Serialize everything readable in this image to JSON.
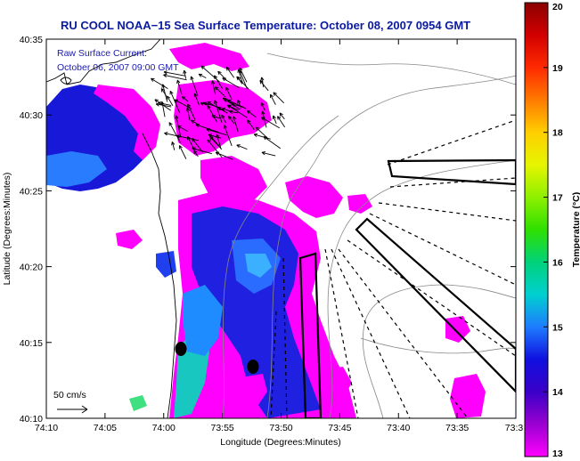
{
  "chart_data": {
    "type": "heatmap",
    "title": "RU COOL  NOAA−15  Sea Surface Temperature:  October 08, 2007 0954 GMT",
    "annotation_lines": [
      "Raw Surface Current:",
      "October 06, 2007 09:00 GMT"
    ],
    "scale_arrow_label": "50 cm/s",
    "xlabel": "Longitude (Degrees:Minutes)",
    "ylabel": "Latitude (Degrees:Minutes)",
    "x_ticks": [
      "74:10",
      "74:05",
      "74:00",
      "73:55",
      "73:50",
      "73:45",
      "73:40",
      "73:35",
      "73:3"
    ],
    "y_ticks": [
      "40:35",
      "40:30",
      "40:25",
      "40:20",
      "40:15",
      "40:10"
    ],
    "xlim": [
      -74.1667,
      -73.5
    ],
    "ylim": [
      40.1667,
      40.5833
    ],
    "colorbar": {
      "label": "Temperature (°C)",
      "ticks": [
        "20",
        "19",
        "18",
        "17",
        "16",
        "15",
        "14",
        "13"
      ],
      "range": [
        13,
        20
      ],
      "colors": [
        "#8a0000",
        "#d20000",
        "#ff2a00",
        "#ff7a00",
        "#ffcf00",
        "#e6f500",
        "#8ef000",
        "#2fe000",
        "#00d27a",
        "#00d0d0",
        "#1e7cff",
        "#1010e0",
        "#3a00c8",
        "#9a00d0",
        "#ff00ff"
      ]
    },
    "sst_color_1": "#ff00ff",
    "sst_color_2": "#2020e0"
  }
}
